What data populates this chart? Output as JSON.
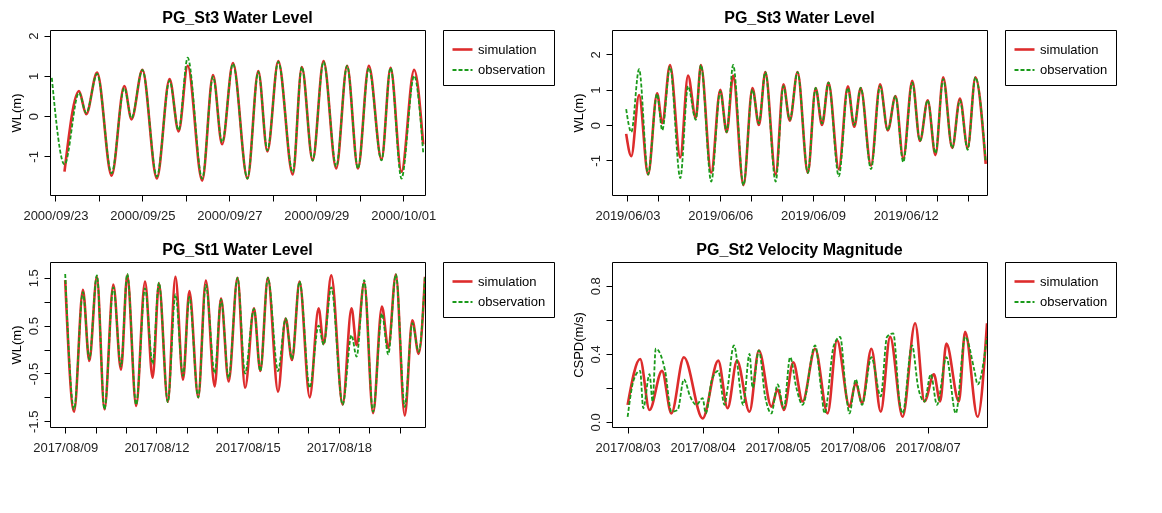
{
  "chart_data": [
    {
      "type": "line",
      "title": "PG_St3 Water Level",
      "ylabel": "WL(m)",
      "legend": "top right",
      "xlim": [
        "2000-09-22T21:00",
        "2000-10-01T12:00"
      ],
      "ylim": [
        -1.96,
        2.14
      ],
      "yticks": [
        -1,
        0,
        1,
        2
      ],
      "xticks": [
        {
          "value": "2000-09-23",
          "label": "2000/09/23"
        },
        {
          "value": "2000-09-24",
          "label": null
        },
        {
          "value": "2000-09-25",
          "label": "2000/09/25"
        },
        {
          "value": "2000-09-26",
          "label": null
        },
        {
          "value": "2000-09-27",
          "label": "2000/09/27"
        },
        {
          "value": "2000-09-28",
          "label": null
        },
        {
          "value": "2000-09-29",
          "label": "2000/09/29"
        },
        {
          "value": "2000-09-30",
          "label": null
        },
        {
          "value": "2000-10-01",
          "label": "2000/10/01"
        }
      ],
      "x": [
        "2000-09-22T22:00",
        "2000-09-23T05:00",
        "2000-09-23T13:00",
        "2000-09-23T17:00",
        "2000-09-23T23:00",
        "2000-09-24T07:00",
        "2000-09-24T14:00",
        "2000-09-24T18:00",
        "2000-09-25T00:00",
        "2000-09-25T08:00",
        "2000-09-25T15:00",
        "2000-09-25T20:00",
        "2000-09-26T01:00",
        "2000-09-26T09:00",
        "2000-09-26T15:00",
        "2000-09-26T20:00",
        "2000-09-27T02:00",
        "2000-09-27T10:00",
        "2000-09-27T16:00",
        "2000-09-27T21:00",
        "2000-09-28T03:00",
        "2000-09-28T11:00",
        "2000-09-28T16:00",
        "2000-09-28T22:00",
        "2000-09-29T04:00",
        "2000-09-29T11:00",
        "2000-09-29T17:00",
        "2000-09-29T23:00",
        "2000-09-30T05:00",
        "2000-09-30T12:00",
        "2000-09-30T17:00",
        "2000-09-30T23:00",
        "2000-10-01T06:00",
        "2000-10-01T11:00"
      ],
      "series": [
        {
          "name": "simulation",
          "color": "#dd2c2c",
          "line_style": "solid",
          "values": [
            null,
            -1.38,
            0.62,
            0.05,
            1.08,
            -1.48,
            0.75,
            -0.08,
            1.15,
            -1.55,
            0.92,
            -0.38,
            1.25,
            -1.6,
            1.02,
            -0.7,
            1.32,
            -1.55,
            1.12,
            -0.88,
            1.37,
            -1.45,
            1.22,
            -1.1,
            1.37,
            -1.3,
            1.25,
            -1.3,
            1.25,
            -1.08,
            1.2,
            -1.38,
            1.15,
            -0.7
          ]
        },
        {
          "name": "observation",
          "color": "#1a9a1a",
          "line_style": "dashed",
          "values": [
            0.95,
            -1.2,
            0.58,
            0.08,
            1.05,
            -1.42,
            0.7,
            -0.05,
            1.15,
            -1.5,
            0.88,
            -0.35,
            1.45,
            -1.55,
            0.98,
            -0.65,
            1.3,
            -1.55,
            1.1,
            -0.85,
            1.35,
            -1.4,
            1.22,
            -1.1,
            1.35,
            -1.25,
            1.25,
            -1.3,
            1.2,
            -1.1,
            1.2,
            -1.55,
            1.0,
            -0.9
          ]
        }
      ]
    },
    {
      "type": "line",
      "title": "PG_St3 Water Level",
      "ylabel": "WL(m)",
      "legend": "top right",
      "xlim": [
        "2019-06-02T12:00",
        "2019-06-14T15:00"
      ],
      "ylim": [
        -1.98,
        2.69
      ],
      "yticks": [
        -1,
        0,
        1,
        2
      ],
      "xticks": [
        {
          "value": "2019-06-03",
          "label": "2019/06/03"
        },
        {
          "value": "2019-06-04",
          "label": null
        },
        {
          "value": "2019-06-05",
          "label": null
        },
        {
          "value": "2019-06-06",
          "label": "2019/06/06"
        },
        {
          "value": "2019-06-07",
          "label": null
        },
        {
          "value": "2019-06-08",
          "label": null
        },
        {
          "value": "2019-06-09",
          "label": "2019/06/09"
        },
        {
          "value": "2019-06-10",
          "label": null
        },
        {
          "value": "2019-06-11",
          "label": null
        },
        {
          "value": "2019-06-12",
          "label": "2019/06/12"
        },
        {
          "value": "2019-06-13",
          "label": null
        },
        {
          "value": "2019-06-14",
          "label": null
        }
      ],
      "x": [
        "2019-06-02T23:00",
        "2019-06-03T03:00",
        "2019-06-03T09:00",
        "2019-06-03T16:00",
        "2019-06-03T23:00",
        "2019-06-04T03:00",
        "2019-06-04T09:00",
        "2019-06-04T17:00",
        "2019-06-04T23:00",
        "2019-06-05T05:00",
        "2019-06-05T09:00",
        "2019-06-05T17:00",
        "2019-06-06T00:00",
        "2019-06-06T05:00",
        "2019-06-06T10:00",
        "2019-06-06T18:00",
        "2019-06-07T01:00",
        "2019-06-07T06:00",
        "2019-06-07T11:00",
        "2019-06-07T19:00",
        "2019-06-08T01:00",
        "2019-06-08T06:00",
        "2019-06-08T12:00",
        "2019-06-08T20:00",
        "2019-06-09T02:00",
        "2019-06-09T07:00",
        "2019-06-09T12:00",
        "2019-06-09T20:00",
        "2019-06-10T03:00",
        "2019-06-10T08:00",
        "2019-06-10T13:00",
        "2019-06-10T21:00",
        "2019-06-11T04:00",
        "2019-06-11T10:00",
        "2019-06-11T16:00",
        "2019-06-11T22:00",
        "2019-06-12T05:00",
        "2019-06-12T11:00",
        "2019-06-12T17:00",
        "2019-06-12T23:00",
        "2019-06-13T05:00",
        "2019-06-13T12:00",
        "2019-06-13T18:00",
        "2019-06-14T00:00",
        "2019-06-14T06:00",
        "2019-06-14T14:00"
      ],
      "series": [
        {
          "name": "simulation",
          "color": "#dd2c2c",
          "line_style": "solid",
          "values": [
            -0.25,
            -0.88,
            0.85,
            -1.4,
            0.9,
            0.05,
            1.7,
            -0.92,
            1.4,
            0.2,
            1.7,
            -1.35,
            1.0,
            -0.2,
            1.4,
            -1.7,
            1.05,
            0.0,
            1.5,
            -1.4,
            1.15,
            0.12,
            1.5,
            -1.35,
            1.05,
            0.0,
            1.2,
            -1.25,
            1.1,
            -0.05,
            1.05,
            -1.15,
            1.15,
            -0.15,
            0.82,
            -0.95,
            1.25,
            -0.45,
            0.7,
            -0.85,
            1.35,
            -0.65,
            0.75,
            -0.65,
            1.35,
            -1.1
          ]
        },
        {
          "name": "observation",
          "color": "#1a9a1a",
          "line_style": "dashed",
          "values": [
            0.45,
            -0.2,
            1.58,
            -1.4,
            0.88,
            -0.15,
            1.65,
            -1.5,
            1.1,
            0.15,
            1.7,
            -1.6,
            0.95,
            -0.2,
            1.7,
            -1.7,
            1.0,
            0.05,
            1.5,
            -1.6,
            1.1,
            0.15,
            1.5,
            -1.35,
            1.05,
            0.05,
            1.2,
            -1.45,
            1.05,
            0.0,
            1.05,
            -1.25,
            1.1,
            -0.15,
            0.82,
            -1.05,
            1.2,
            -0.45,
            0.7,
            -0.8,
            1.3,
            -0.65,
            0.7,
            -0.7,
            1.35,
            -1.05
          ]
        }
      ]
    },
    {
      "type": "line",
      "title": "PG_St1 Water Level",
      "ylabel": "WL(m)",
      "legend": "top right",
      "xlim": [
        "2017-08-08T12:00",
        "2017-08-20T20:00"
      ],
      "ylim": [
        -1.62,
        1.83
      ],
      "yticks": [
        -1.5,
        {
          "value": -1,
          "label": null
        },
        -0.5,
        {
          "value": 0,
          "label": null
        },
        0.5,
        {
          "value": 1,
          "label": null
        },
        1.5
      ],
      "xticks": [
        {
          "value": "2017-08-09",
          "label": "2017/08/09"
        },
        {
          "value": "2017-08-10",
          "label": null
        },
        {
          "value": "2017-08-11",
          "label": null
        },
        {
          "value": "2017-08-12",
          "label": "2017/08/12"
        },
        {
          "value": "2017-08-13",
          "label": null
        },
        {
          "value": "2017-08-14",
          "label": null
        },
        {
          "value": "2017-08-15",
          "label": "2017/08/15"
        },
        {
          "value": "2017-08-16",
          "label": null
        },
        {
          "value": "2017-08-17",
          "label": null
        },
        {
          "value": "2017-08-18",
          "label": "2017/08/18"
        },
        {
          "value": "2017-08-19",
          "label": null
        },
        {
          "value": "2017-08-20",
          "label": null
        }
      ],
      "x": [
        "2017-08-09T00:00",
        "2017-08-09T07:00",
        "2017-08-09T14:00",
        "2017-08-09T19:00",
        "2017-08-10T01:00",
        "2017-08-10T07:00",
        "2017-08-10T14:00",
        "2017-08-10T20:00",
        "2017-08-11T01:00",
        "2017-08-11T08:00",
        "2017-08-11T15:00",
        "2017-08-11T21:00",
        "2017-08-12T02:00",
        "2017-08-12T09:00",
        "2017-08-12T15:00",
        "2017-08-12T21:00",
        "2017-08-13T02:00",
        "2017-08-13T09:00",
        "2017-08-13T15:00",
        "2017-08-13T22:00",
        "2017-08-14T03:00",
        "2017-08-14T09:00",
        "2017-08-14T16:00",
        "2017-08-14T22:00",
        "2017-08-15T05:00",
        "2017-08-15T10:00",
        "2017-08-15T16:00",
        "2017-08-16T00:00",
        "2017-08-16T06:00",
        "2017-08-16T11:00",
        "2017-08-16T17:00",
        "2017-08-17T01:00",
        "2017-08-17T08:00",
        "2017-08-17T12:00",
        "2017-08-17T18:00",
        "2017-08-18T03:00",
        "2017-08-18T10:00",
        "2017-08-18T14:00",
        "2017-08-18T20:00",
        "2017-08-19T03:00",
        "2017-08-19T10:00",
        "2017-08-19T15:00",
        "2017-08-19T21:00",
        "2017-08-20T04:00",
        "2017-08-20T10:00",
        "2017-08-20T15:00",
        "2017-08-20T20:00"
      ],
      "series": [
        {
          "name": "simulation",
          "color": "#dd2c2c",
          "line_style": "solid",
          "values": [
            1.45,
            -1.3,
            1.25,
            -0.24,
            1.52,
            -1.25,
            1.36,
            -0.42,
            1.55,
            -1.18,
            1.42,
            -0.59,
            1.38,
            -1.09,
            1.52,
            -0.63,
            1.22,
            -1.0,
            1.44,
            -0.77,
            1.07,
            -0.67,
            1.5,
            -0.8,
            0.86,
            -0.45,
            1.5,
            -0.88,
            0.65,
            -0.22,
            1.42,
            -1.0,
            0.86,
            0.12,
            1.55,
            -1.15,
            0.86,
            0.09,
            1.4,
            -1.33,
            0.9,
            0.03,
            1.57,
            -1.38,
            0.61,
            -0.09,
            1.52
          ]
        },
        {
          "name": "observation",
          "color": "#1a9a1a",
          "line_style": "dashed",
          "values": [
            1.58,
            -1.25,
            1.2,
            -0.2,
            1.55,
            -1.25,
            1.3,
            -0.35,
            1.58,
            -1.15,
            1.28,
            -0.3,
            1.4,
            -1.1,
            1.15,
            -0.55,
            1.1,
            -1.0,
            1.35,
            -0.5,
            1.05,
            -0.6,
            1.5,
            -0.5,
            0.85,
            -0.45,
            1.5,
            -0.45,
            0.65,
            -0.2,
            1.42,
            -0.8,
            0.5,
            0.1,
            1.3,
            -1.15,
            0.3,
            -0.15,
            1.45,
            -1.3,
            0.75,
            -0.1,
            1.57,
            -1.2,
            0.55,
            -0.05,
            1.55
          ]
        }
      ]
    },
    {
      "type": "line",
      "title": "PG_St2 Velocity Magnitude",
      "ylabel": "CSPD(m/s)",
      "legend": "top right",
      "xlim": [
        "2017-08-02T19:00",
        "2017-08-07T19:00"
      ],
      "ylim": [
        -0.03,
        0.94
      ],
      "yticks": [
        {
          "value": 0,
          "label": "0.0"
        },
        {
          "value": 0.2,
          "label": null
        },
        0.4,
        {
          "value": 0.6,
          "label": null
        },
        0.8
      ],
      "xticks": [
        {
          "value": "2017-08-03",
          "label": "2017/08/03"
        },
        {
          "value": "2017-08-04",
          "label": "2017/08/04"
        },
        {
          "value": "2017-08-05",
          "label": "2017/08/05"
        },
        {
          "value": "2017-08-06",
          "label": "2017/08/06"
        },
        {
          "value": "2017-08-07",
          "label": "2017/08/07"
        }
      ],
      "series": [
        {
          "name": "simulation",
          "color": "#dd2c2c",
          "line_style": "solid",
          "x": [
            "2017-08-03T00:00",
            "2017-08-03T04:00",
            "2017-08-03T07:00",
            "2017-08-03T11:00",
            "2017-08-03T14:00",
            "2017-08-03T18:00",
            "2017-08-04T00:00",
            "2017-08-04T05:00",
            "2017-08-04T08:00",
            "2017-08-04T11:00",
            "2017-08-04T15:00",
            "2017-08-04T18:00",
            "2017-08-04T22:00",
            "2017-08-05T00:00",
            "2017-08-05T02:00",
            "2017-08-05T05:00",
            "2017-08-05T08:00",
            "2017-08-05T12:00",
            "2017-08-05T16:00",
            "2017-08-05T19:00",
            "2017-08-05T23:00",
            "2017-08-06T01:00",
            "2017-08-06T03:00",
            "2017-08-06T06:00",
            "2017-08-06T09:00",
            "2017-08-06T12:00",
            "2017-08-06T16:00",
            "2017-08-06T20:00",
            "2017-08-06T23:00",
            "2017-08-07T02:00",
            "2017-08-07T04:00",
            "2017-08-07T06:00",
            "2017-08-07T10:00",
            "2017-08-07T12:00",
            "2017-08-07T16:00",
            "2017-08-07T19:00"
          ],
          "values": [
            0.1,
            0.37,
            0.07,
            0.3,
            0.05,
            0.38,
            0.02,
            0.36,
            0.08,
            0.36,
            0.06,
            0.42,
            0.09,
            0.19,
            0.07,
            0.35,
            0.12,
            0.43,
            0.05,
            0.48,
            0.09,
            0.23,
            0.11,
            0.43,
            0.06,
            0.5,
            0.03,
            0.58,
            0.12,
            0.28,
            0.12,
            0.46,
            0.12,
            0.53,
            0.03,
            0.58
          ]
        },
        {
          "name": "observation",
          "color": "#1a9a1a",
          "line_style": "dashed",
          "x": [
            "2017-08-03T00:00",
            "2017-08-03T02:00",
            "2017-08-03T04:00",
            "2017-08-03T05:00",
            "2017-08-03T07:00",
            "2017-08-03T08:00",
            "2017-08-03T09:00",
            "2017-08-03T12:00",
            "2017-08-03T14:00",
            "2017-08-03T16:00",
            "2017-08-03T18:00",
            "2017-08-03T20:00",
            "2017-08-03T22:00",
            "2017-08-04T00:00",
            "2017-08-04T01:00",
            "2017-08-04T03:00",
            "2017-08-04T05:00",
            "2017-08-04T07:00",
            "2017-08-04T08:00",
            "2017-08-04T10:00",
            "2017-08-04T13:00",
            "2017-08-04T15:00",
            "2017-08-04T16:00",
            "2017-08-04T18:00",
            "2017-08-04T20:00",
            "2017-08-04T22:00",
            "2017-08-05T00:00",
            "2017-08-05T02:00",
            "2017-08-05T04:00",
            "2017-08-05T06:00",
            "2017-08-05T08:00",
            "2017-08-05T12:00",
            "2017-08-05T14:00",
            "2017-08-05T15:00",
            "2017-08-05T18:00",
            "2017-08-05T20:00",
            "2017-08-05T22:00",
            "2017-08-05T23:00",
            "2017-08-06T01:00",
            "2017-08-06T03:00",
            "2017-08-06T06:00",
            "2017-08-06T09:00",
            "2017-08-06T11:00",
            "2017-08-06T13:00",
            "2017-08-06T15:00",
            "2017-08-06T16:00",
            "2017-08-06T19:00",
            "2017-08-06T21:00",
            "2017-08-06T23:00",
            "2017-08-07T01:00",
            "2017-08-07T03:00",
            "2017-08-07T06:00",
            "2017-08-07T09:00",
            "2017-08-07T12:00",
            "2017-08-07T15:00",
            "2017-08-07T16:00",
            "2017-08-07T19:00"
          ],
          "values": [
            0.03,
            0.25,
            0.3,
            0.08,
            0.28,
            0.12,
            0.43,
            0.3,
            0.06,
            0.07,
            0.25,
            0.15,
            0.1,
            0.14,
            0.05,
            0.25,
            0.3,
            0.1,
            0.2,
            0.45,
            0.1,
            0.4,
            0.2,
            0.42,
            0.15,
            0.05,
            0.22,
            0.08,
            0.38,
            0.2,
            0.1,
            0.45,
            0.18,
            0.05,
            0.45,
            0.5,
            0.15,
            0.05,
            0.25,
            0.1,
            0.38,
            0.15,
            0.5,
            0.52,
            0.12,
            0.05,
            0.45,
            0.2,
            0.12,
            0.28,
            0.1,
            0.38,
            0.05,
            0.5,
            0.3,
            0.22,
            0.5
          ]
        }
      ]
    }
  ]
}
